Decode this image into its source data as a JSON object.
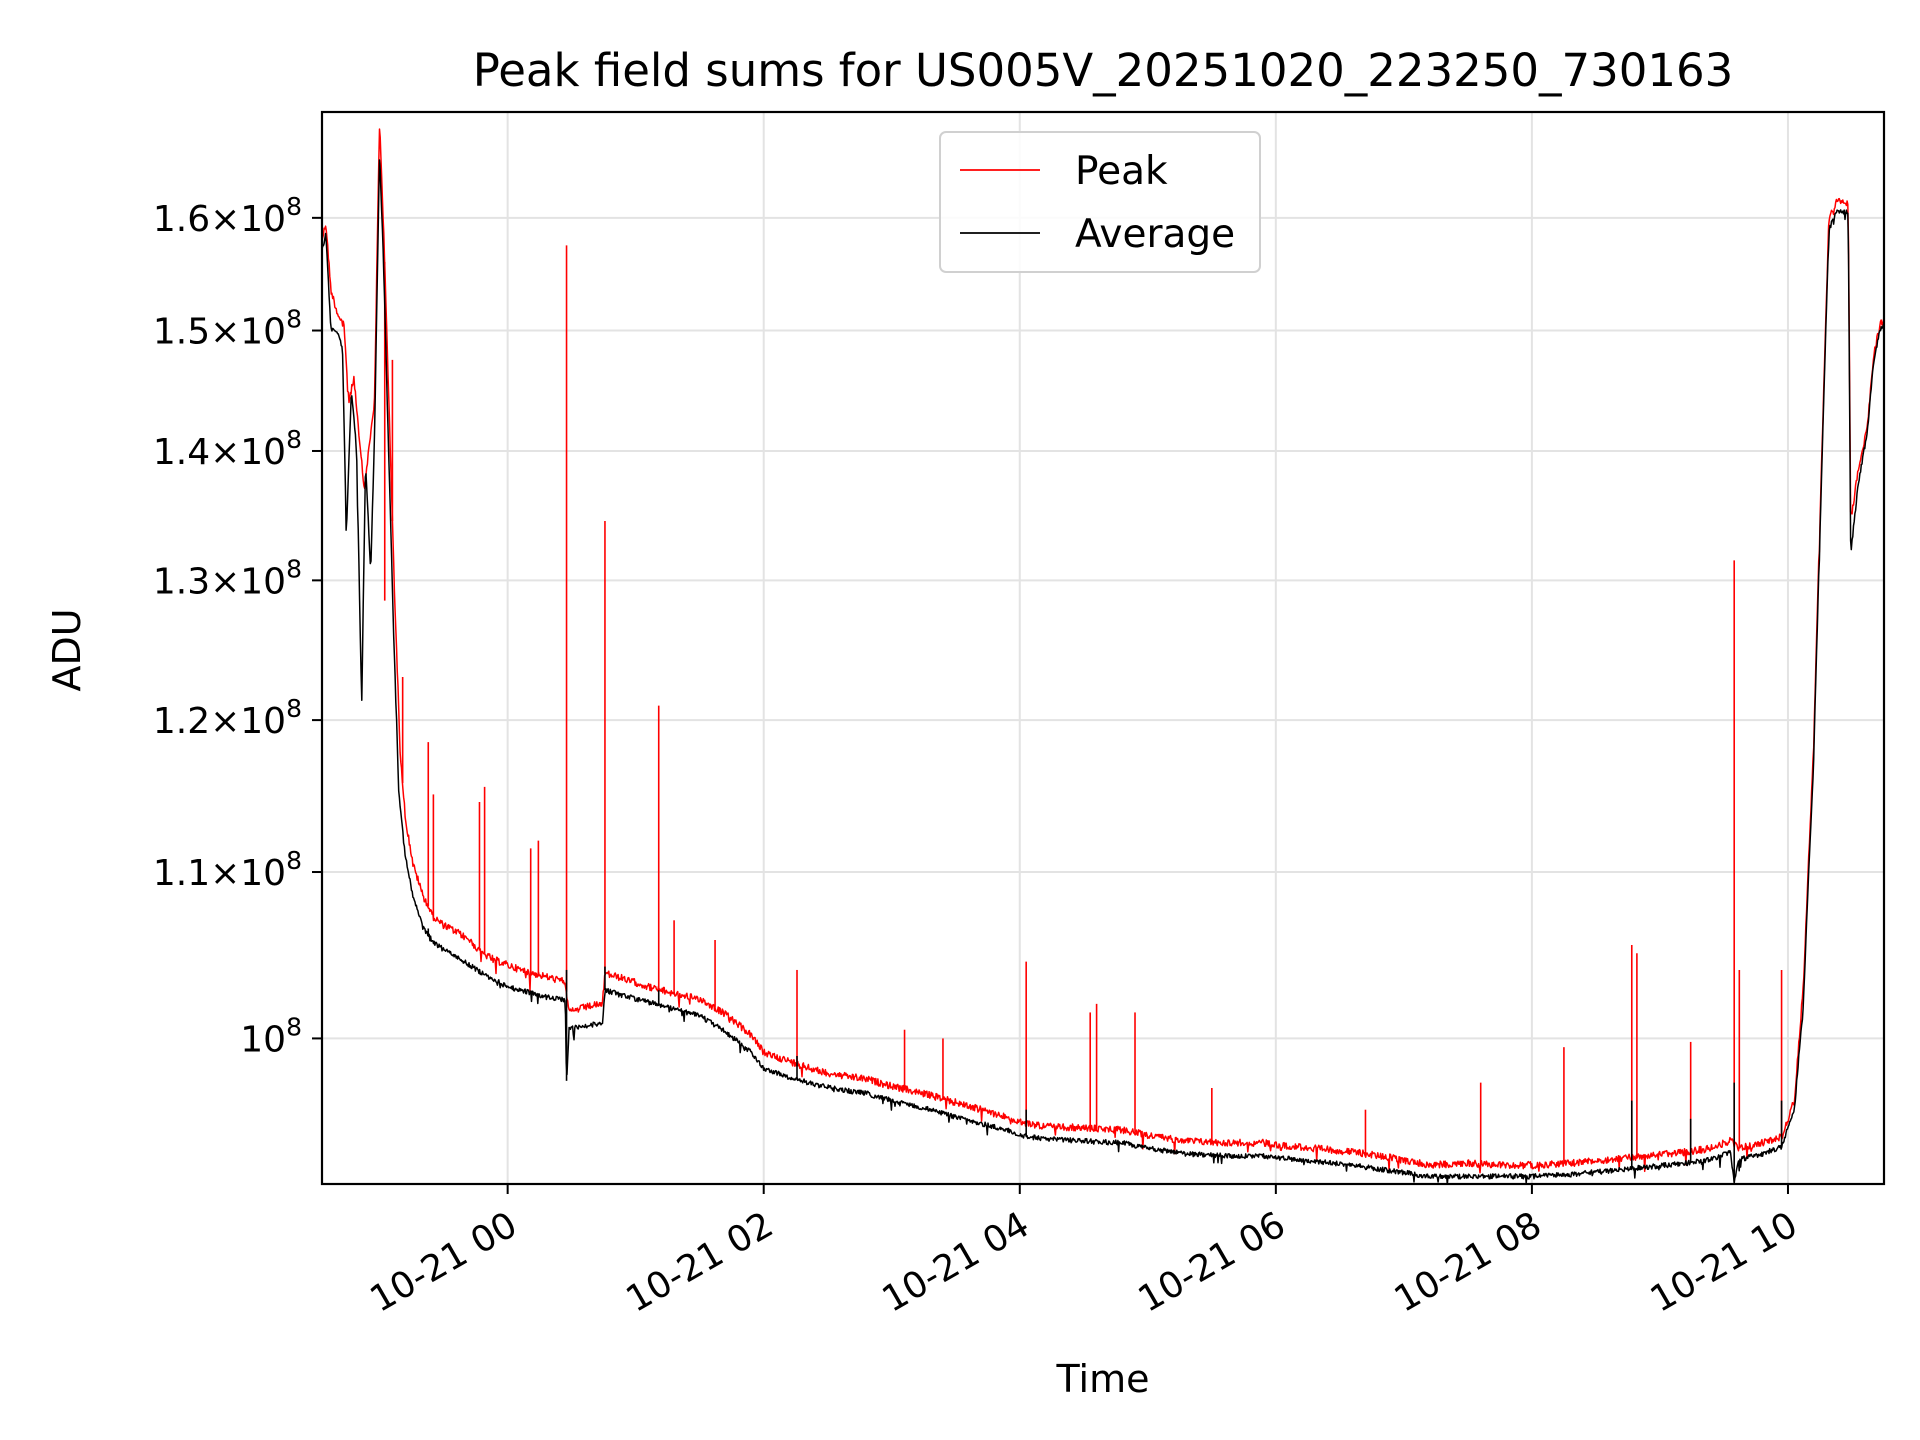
{
  "chart_data": {
    "type": "line",
    "title": "Peak field sums for US005V_20251020_223250_730163",
    "xlabel": "Time",
    "ylabel": "ADU",
    "yscale": "log",
    "grid": true,
    "legend_position": "top-center",
    "x_unit": "hours since 2025-10-21 00:00",
    "xlim": [
      -1.45,
      10.75
    ],
    "ylim": [
      92000000,
      170000000
    ],
    "x_ticks": [
      {
        "value": 0,
        "label": "10-21 00"
      },
      {
        "value": 2,
        "label": "10-21 02"
      },
      {
        "value": 4,
        "label": "10-21 04"
      },
      {
        "value": 6,
        "label": "10-21 06"
      },
      {
        "value": 8,
        "label": "10-21 08"
      },
      {
        "value": 10,
        "label": "10-21 10"
      }
    ],
    "y_ticks": [
      {
        "value": 100000000,
        "mantissa": "",
        "exponent": "8"
      },
      {
        "value": 110000000,
        "mantissa": "1.1",
        "exponent": "8"
      },
      {
        "value": 120000000,
        "mantissa": "1.2",
        "exponent": "8"
      },
      {
        "value": 130000000,
        "mantissa": "1.3",
        "exponent": "8"
      },
      {
        "value": 140000000,
        "mantissa": "1.4",
        "exponent": "8"
      },
      {
        "value": 150000000,
        "mantissa": "1.5",
        "exponent": "8"
      },
      {
        "value": 160000000,
        "mantissa": "1.6",
        "exponent": "8"
      }
    ],
    "series": [
      {
        "name": "Peak",
        "color": "#ff0000",
        "points": [
          [
            -1.45,
            158.0
          ],
          [
            -1.42,
            159.5
          ],
          [
            -1.38,
            153.5
          ],
          [
            -1.33,
            151.5
          ],
          [
            -1.28,
            150.5
          ],
          [
            -1.24,
            144.0
          ],
          [
            -1.2,
            146.0
          ],
          [
            -1.16,
            141.0
          ],
          [
            -1.12,
            137.0
          ],
          [
            -1.08,
            140.5
          ],
          [
            -1.04,
            144.0
          ],
          [
            -1.0,
            169.0
          ],
          [
            -0.96,
            156.0
          ],
          [
            -0.92,
            141.0
          ],
          [
            -0.88,
            128.0
          ],
          [
            -0.84,
            118.0
          ],
          [
            -0.8,
            113.5
          ],
          [
            -0.74,
            110.5
          ],
          [
            -0.66,
            108.5
          ],
          [
            -0.58,
            107.2
          ],
          [
            -0.5,
            106.7
          ],
          [
            -0.4,
            106.3
          ],
          [
            -0.3,
            105.8
          ],
          [
            -0.2,
            105.0
          ],
          [
            -0.1,
            104.6
          ],
          [
            0.0,
            104.3
          ],
          [
            0.1,
            104.0
          ],
          [
            0.2,
            103.8
          ],
          [
            0.3,
            103.6
          ],
          [
            0.45,
            103.3
          ],
          [
            0.48,
            101.5
          ],
          [
            0.6,
            101.8
          ],
          [
            0.74,
            102.0
          ],
          [
            0.76,
            103.8
          ],
          [
            0.9,
            103.5
          ],
          [
            1.1,
            103.0
          ],
          [
            1.3,
            102.6
          ],
          [
            1.5,
            102.3
          ],
          [
            1.7,
            101.4
          ],
          [
            1.9,
            100.2
          ],
          [
            2.0,
            99.2
          ],
          [
            2.2,
            98.7
          ],
          [
            2.4,
            98.2
          ],
          [
            2.6,
            97.9
          ],
          [
            2.8,
            97.7
          ],
          [
            3.0,
            97.3
          ],
          [
            3.3,
            96.8
          ],
          [
            3.6,
            96.2
          ],
          [
            3.9,
            95.6
          ],
          [
            4.0,
            95.3
          ],
          [
            4.2,
            95.1
          ],
          [
            4.5,
            95.0
          ],
          [
            4.8,
            94.9
          ],
          [
            5.0,
            94.6
          ],
          [
            5.3,
            94.3
          ],
          [
            5.6,
            94.2
          ],
          [
            5.9,
            94.2
          ],
          [
            6.0,
            94.1
          ],
          [
            6.3,
            93.9
          ],
          [
            6.6,
            93.7
          ],
          [
            6.9,
            93.4
          ],
          [
            7.2,
            93.0
          ],
          [
            7.5,
            93.1
          ],
          [
            7.8,
            93.0
          ],
          [
            8.0,
            93.0
          ],
          [
            8.3,
            93.1
          ],
          [
            8.6,
            93.3
          ],
          [
            8.9,
            93.5
          ],
          [
            9.2,
            93.7
          ],
          [
            9.4,
            93.9
          ],
          [
            9.55,
            94.3
          ],
          [
            9.62,
            93.9
          ],
          [
            9.8,
            94.2
          ],
          [
            9.95,
            94.5
          ],
          [
            10.05,
            96.5
          ],
          [
            10.12,
            103.0
          ],
          [
            10.2,
            118.0
          ],
          [
            10.26,
            138.0
          ],
          [
            10.32,
            160.0
          ],
          [
            10.38,
            161.5
          ],
          [
            10.47,
            161.5
          ],
          [
            10.49,
            134.5
          ],
          [
            10.55,
            138.5
          ],
          [
            10.62,
            142.0
          ],
          [
            10.67,
            148.0
          ],
          [
            10.72,
            150.5
          ],
          [
            10.75,
            151.0
          ]
        ],
        "spikes": [
          [
            -0.96,
            128.5
          ],
          [
            -0.9,
            147.5
          ],
          [
            -0.82,
            123.0
          ],
          [
            -0.62,
            118.5
          ],
          [
            -0.58,
            115.0
          ],
          [
            -0.22,
            114.5
          ],
          [
            -0.18,
            115.5
          ],
          [
            0.18,
            111.5
          ],
          [
            0.24,
            112.0
          ],
          [
            0.46,
            157.5
          ],
          [
            0.76,
            134.5
          ],
          [
            1.18,
            121.0
          ],
          [
            1.3,
            107.0
          ],
          [
            1.62,
            105.8
          ],
          [
            2.26,
            104.0
          ],
          [
            3.1,
            100.5
          ],
          [
            3.4,
            100.0
          ],
          [
            4.05,
            104.5
          ],
          [
            4.55,
            101.5
          ],
          [
            4.6,
            102.0
          ],
          [
            4.9,
            101.5
          ],
          [
            5.5,
            97.2
          ],
          [
            6.7,
            96.0
          ],
          [
            7.6,
            97.5
          ],
          [
            8.25,
            99.5
          ],
          [
            8.78,
            105.5
          ],
          [
            8.82,
            105.0
          ],
          [
            9.24,
            99.8
          ],
          [
            9.58,
            131.5
          ],
          [
            9.62,
            104.0
          ],
          [
            9.95,
            104.0
          ]
        ]
      },
      {
        "name": "Average",
        "color": "#000000",
        "points": [
          [
            -1.45,
            157.0
          ],
          [
            -1.42,
            158.5
          ],
          [
            -1.38,
            150.0
          ],
          [
            -1.33,
            150.0
          ],
          [
            -1.29,
            148.5
          ],
          [
            -1.26,
            133.5
          ],
          [
            -1.22,
            145.0
          ],
          [
            -1.18,
            140.0
          ],
          [
            -1.14,
            121.0
          ],
          [
            -1.11,
            139.0
          ],
          [
            -1.07,
            130.5
          ],
          [
            -1.04,
            141.0
          ],
          [
            -1.0,
            166.0
          ],
          [
            -0.97,
            156.0
          ],
          [
            -0.93,
            140.0
          ],
          [
            -0.89,
            126.0
          ],
          [
            -0.85,
            115.0
          ],
          [
            -0.8,
            111.0
          ],
          [
            -0.74,
            108.5
          ],
          [
            -0.66,
            106.5
          ],
          [
            -0.58,
            105.7
          ],
          [
            -0.5,
            105.2
          ],
          [
            -0.4,
            104.8
          ],
          [
            -0.3,
            104.3
          ],
          [
            -0.2,
            103.8
          ],
          [
            -0.1,
            103.4
          ],
          [
            0.0,
            103.0
          ],
          [
            0.1,
            102.8
          ],
          [
            0.2,
            102.6
          ],
          [
            0.3,
            102.4
          ],
          [
            0.45,
            102.2
          ],
          [
            0.46,
            97.6
          ],
          [
            0.48,
            100.6
          ],
          [
            0.6,
            100.7
          ],
          [
            0.74,
            100.9
          ],
          [
            0.76,
            102.8
          ],
          [
            0.9,
            102.5
          ],
          [
            1.1,
            102.1
          ],
          [
            1.3,
            101.7
          ],
          [
            1.5,
            101.3
          ],
          [
            1.7,
            100.4
          ],
          [
            1.9,
            99.2
          ],
          [
            2.0,
            98.3
          ],
          [
            2.2,
            97.8
          ],
          [
            2.4,
            97.4
          ],
          [
            2.6,
            97.1
          ],
          [
            2.8,
            96.9
          ],
          [
            3.0,
            96.5
          ],
          [
            3.3,
            96.0
          ],
          [
            3.6,
            95.4
          ],
          [
            3.9,
            94.9
          ],
          [
            4.0,
            94.6
          ],
          [
            4.2,
            94.4
          ],
          [
            4.5,
            94.3
          ],
          [
            4.8,
            94.2
          ],
          [
            5.0,
            93.9
          ],
          [
            5.3,
            93.6
          ],
          [
            5.6,
            93.5
          ],
          [
            5.9,
            93.5
          ],
          [
            6.0,
            93.4
          ],
          [
            6.3,
            93.2
          ],
          [
            6.6,
            93.0
          ],
          [
            6.9,
            92.7
          ],
          [
            7.2,
            92.4
          ],
          [
            7.5,
            92.4
          ],
          [
            7.8,
            92.4
          ],
          [
            8.0,
            92.4
          ],
          [
            8.3,
            92.5
          ],
          [
            8.6,
            92.7
          ],
          [
            8.9,
            92.9
          ],
          [
            9.2,
            93.1
          ],
          [
            9.4,
            93.3
          ],
          [
            9.55,
            93.7
          ],
          [
            9.58,
            92.1
          ],
          [
            9.62,
            93.3
          ],
          [
            9.8,
            93.6
          ],
          [
            9.95,
            94.0
          ],
          [
            10.05,
            96.0
          ],
          [
            10.12,
            102.0
          ],
          [
            10.2,
            117.0
          ],
          [
            10.26,
            137.0
          ],
          [
            10.32,
            159.0
          ],
          [
            10.38,
            160.5
          ],
          [
            10.47,
            160.5
          ],
          [
            10.49,
            132.0
          ],
          [
            10.55,
            137.5
          ],
          [
            10.62,
            141.5
          ],
          [
            10.67,
            147.5
          ],
          [
            10.72,
            150.0
          ],
          [
            10.75,
            150.5
          ]
        ],
        "spikes": [
          [
            -0.62,
            106.5
          ],
          [
            0.46,
            104.0
          ],
          [
            0.76,
            104.2
          ],
          [
            1.18,
            102.8
          ],
          [
            2.26,
            99.0
          ],
          [
            4.05,
            96.0
          ],
          [
            8.78,
            96.5
          ],
          [
            9.24,
            95.5
          ],
          [
            9.58,
            97.5
          ],
          [
            9.95,
            96.5
          ]
        ]
      }
    ]
  }
}
